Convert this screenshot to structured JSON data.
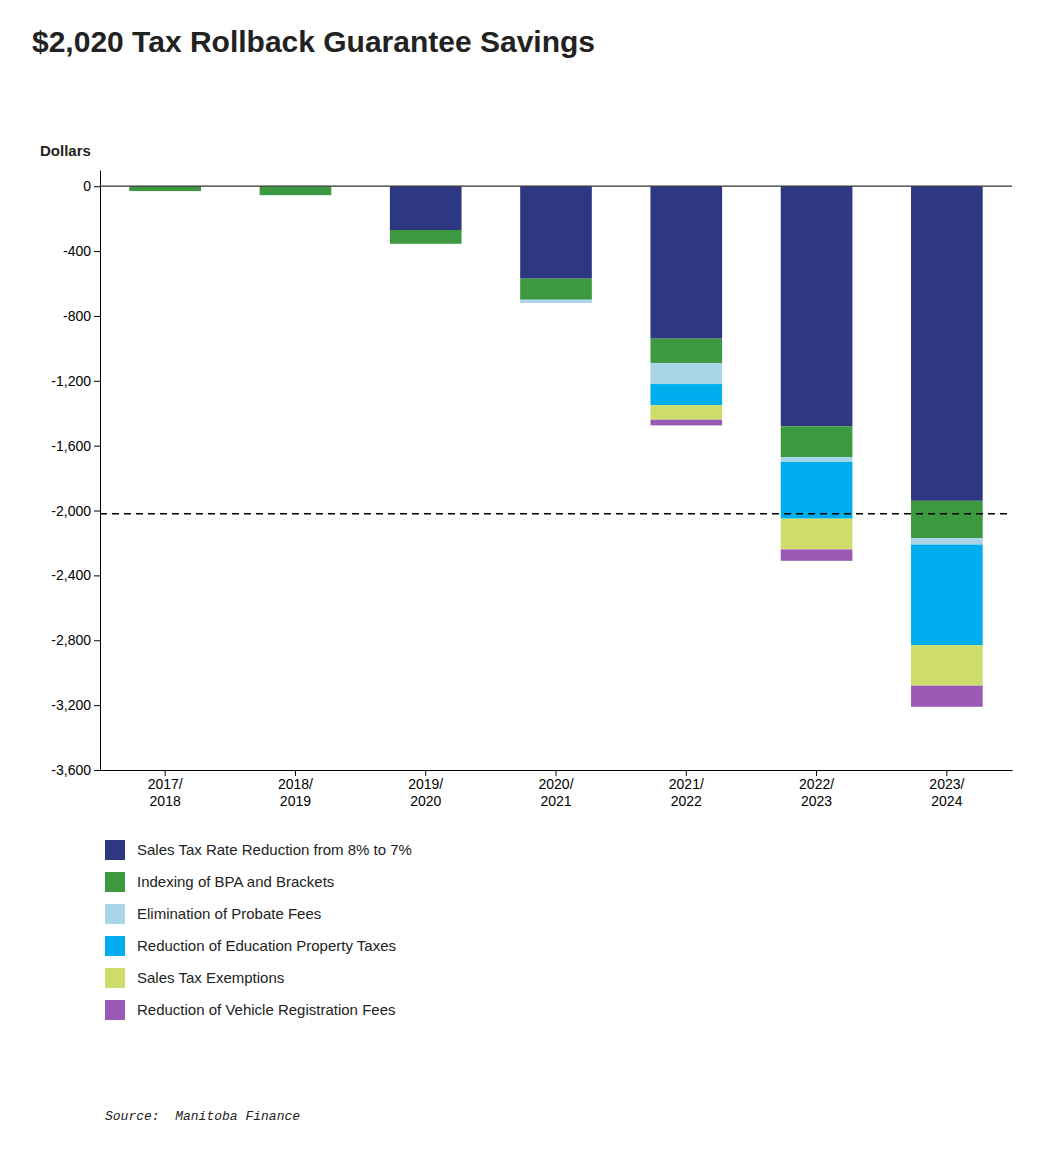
{
  "chart_data": {
    "type": "bar",
    "stacked": true,
    "title": "$2,020 Tax Rollback Guarantee Savings",
    "ylabel": "Dollars",
    "source": "Source:  Manitoba Finance",
    "categories": [
      "2017/\n2018",
      "2018/\n2019",
      "2019/\n2020",
      "2020/\n2021",
      "2021/\n2022",
      "2022/\n2023",
      "2023/\n2024"
    ],
    "ylim": [
      -3600,
      100
    ],
    "yticks": [
      0,
      -400,
      -800,
      {
        "value": -1200,
        "label": "-1,200"
      },
      {
        "value": -1600,
        "label": "-1,600"
      },
      {
        "value": -2000,
        "label": "-2,000"
      },
      {
        "value": -2400,
        "label": "-2,400"
      },
      {
        "value": -2800,
        "label": "-2,800"
      },
      {
        "value": -3200,
        "label": "-3,200"
      },
      {
        "value": -3600,
        "label": "-3,600"
      }
    ],
    "hline": -2020,
    "legend": "bottom",
    "series": [
      {
        "name": "Sales Tax Rate Reduction from 8% to 7%",
        "color": "#2E3882",
        "values": [
          0,
          0,
          -270,
          -570,
          -940,
          -1480,
          -1940
        ]
      },
      {
        "name": "Indexing of BPA and Brackets",
        "color": "#3C9940",
        "values": [
          -30,
          -55,
          -85,
          -130,
          -150,
          -190,
          -230
        ]
      },
      {
        "name": "Elimination of Probate Fees",
        "color": "#A8D5E8",
        "values": [
          0,
          0,
          0,
          -20,
          -130,
          -30,
          -40
        ]
      },
      {
        "name": "Reduction of Education Property Taxes",
        "color": "#00AEEF",
        "values": [
          0,
          0,
          0,
          0,
          -130,
          -350,
          -620
        ]
      },
      {
        "name": "Sales Tax Exemptions",
        "color": "#CDDC6B",
        "values": [
          0,
          0,
          0,
          0,
          -90,
          -190,
          -250
        ]
      },
      {
        "name": "Reduction of Vehicle Registration Fees",
        "color": "#9B59B6",
        "values": [
          0,
          0,
          0,
          0,
          -35,
          -70,
          -130
        ]
      }
    ]
  }
}
